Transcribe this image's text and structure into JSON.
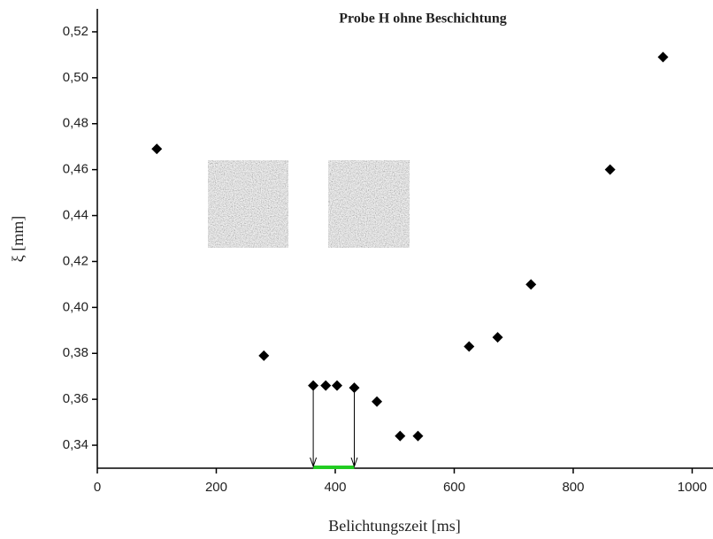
{
  "chart_data": {
    "type": "scatter",
    "title": "Probe H ohne Beschichtung",
    "x_label": "Belichtungszeit [ms]",
    "y_label": "ξ [mm]",
    "color": "#000000",
    "x": [
      100,
      280,
      363,
      384,
      403,
      432,
      470,
      509,
      539,
      625,
      673,
      729,
      862,
      951
    ],
    "values": [
      0.469,
      0.379,
      0.366,
      0.366,
      0.366,
      0.365,
      0.359,
      0.344,
      0.344,
      0.383,
      0.387,
      0.41,
      0.46,
      0.509
    ],
    "xlim": [
      0,
      1035
    ],
    "ylim": [
      0.33,
      0.53
    ],
    "xticks": [
      0,
      200,
      400,
      600,
      800,
      1000
    ],
    "yticks": [
      {
        "value": 0.34,
        "label": "0,34"
      },
      {
        "value": 0.36,
        "label": "0,36"
      },
      {
        "value": 0.38,
        "label": "0,38"
      },
      {
        "value": 0.4,
        "label": "0,40"
      },
      {
        "value": 0.42,
        "label": "0,42"
      },
      {
        "value": 0.44,
        "label": "0,44"
      },
      {
        "value": 0.46,
        "label": "0,46"
      },
      {
        "value": 0.48,
        "label": "0,48"
      },
      {
        "value": 0.5,
        "label": "0,50"
      },
      {
        "value": 0.52,
        "label": "0,52"
      }
    ],
    "grid": false
  }
}
